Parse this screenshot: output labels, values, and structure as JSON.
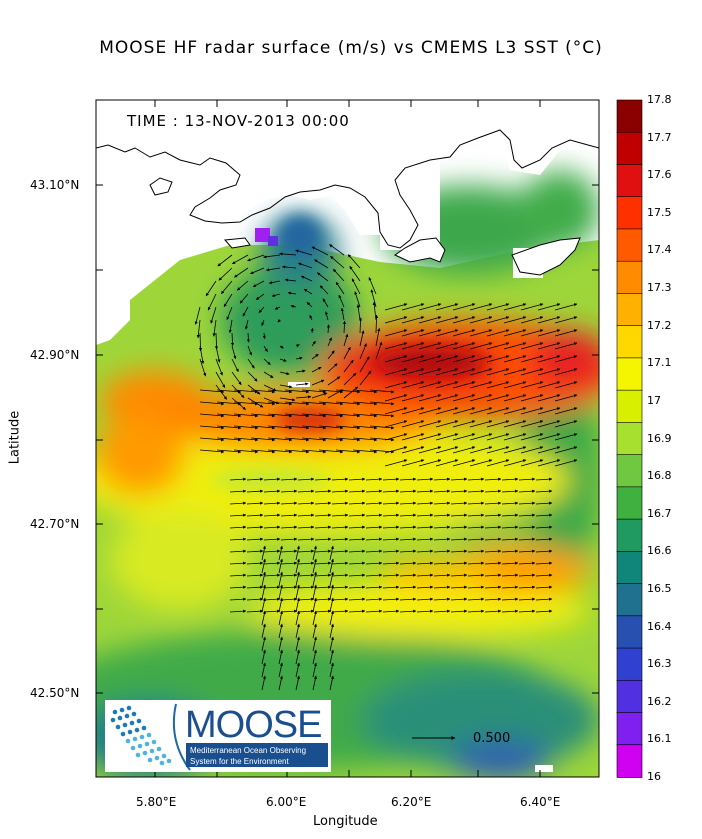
{
  "title": "MOOSE HF radar surface (m/s) vs CMEMS L3 SST (°C)",
  "time_label": "TIME : 13-NOV-2013 00:00",
  "axes": {
    "xlabel": "Longitude",
    "ylabel": "Latitude",
    "x_ticks": [
      "5.80°E",
      "6.00°E",
      "6.20°E",
      "6.40°E"
    ],
    "y_ticks": [
      "43.10°N",
      "42.90°N",
      "42.70°N",
      "42.50°N"
    ]
  },
  "colorbar": {
    "ticks": [
      "17.8",
      "17.7",
      "17.6",
      "17.5",
      "17.4",
      "17.3",
      "17.2",
      "17.1",
      "17",
      "16.9",
      "16.8",
      "16.7",
      "16.6",
      "16.5",
      "16.4",
      "16.3",
      "16.2",
      "16.1",
      "16"
    ],
    "colors": [
      "#8b0000",
      "#c00000",
      "#e01010",
      "#ff3000",
      "#ff5a00",
      "#ff8c00",
      "#ffb000",
      "#ffd800",
      "#f5f500",
      "#d8f000",
      "#a8e030",
      "#70c840",
      "#40b040",
      "#209a60",
      "#10857a",
      "#207090",
      "#2850b0",
      "#3040d0",
      "#5030e0",
      "#8020f0",
      "#d000f0"
    ]
  },
  "reference_arrow": {
    "label": "0.500"
  },
  "logo": {
    "name": "MOOSE",
    "line1": "Mediterranean Ocean Observing",
    "line2": "System for the Environment"
  },
  "colors": {
    "warm_core": "#e51a1a",
    "eddy": "#1a8a7a",
    "land": "#ffffff"
  }
}
